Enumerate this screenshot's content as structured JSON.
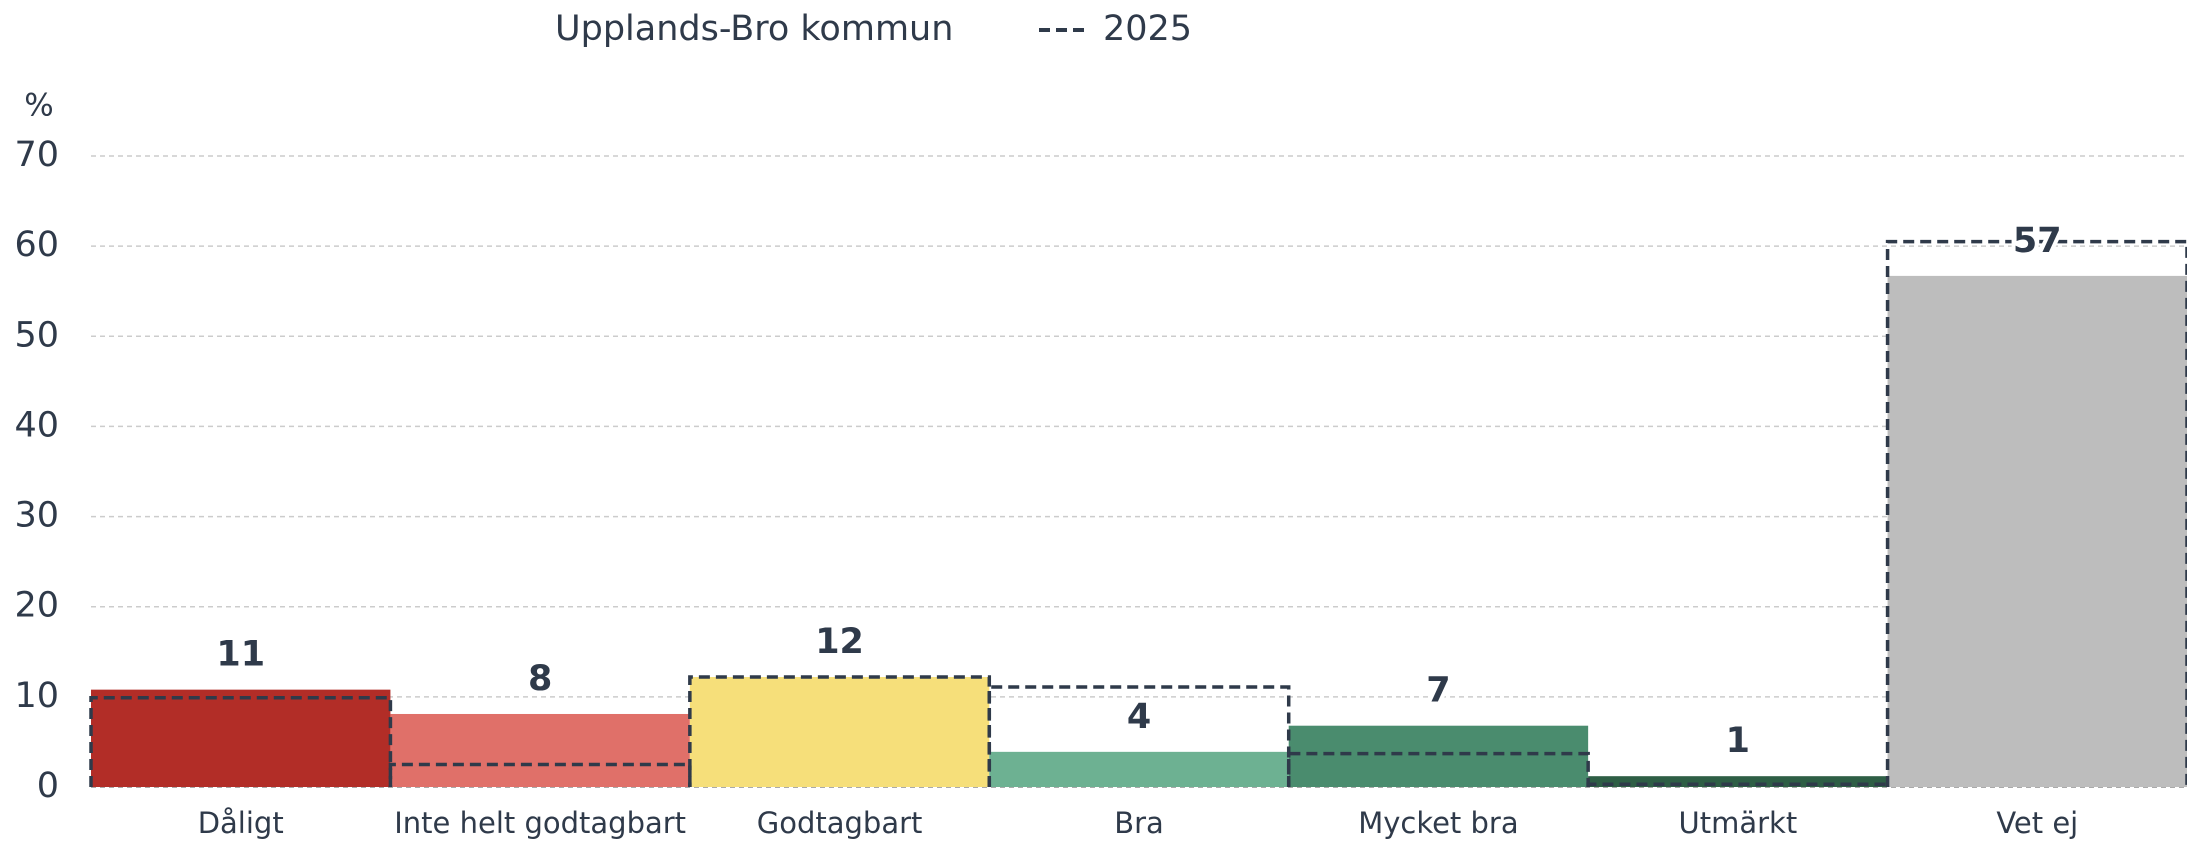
{
  "chart_data": {
    "type": "bar",
    "y_axis_label": "%",
    "categories": [
      "Dåligt",
      "Inte helt godtagbart",
      "Godtagbart",
      "Bra",
      "Mycket bra",
      "Utmärkt",
      "Vet ej"
    ],
    "series": [
      {
        "name": "Upplands-Bro kommun",
        "colors": [
          "#b22d27",
          "#e07069",
          "#f6df7a",
          "#6db192",
          "#4a8c6e",
          "#2e5e45",
          "#bdbdbd"
        ],
        "values": [
          10.8,
          8.1,
          12.2,
          3.9,
          6.8,
          1.2,
          56.7
        ],
        "value_labels": [
          "11",
          "8",
          "12",
          "4",
          "7",
          "1",
          "57"
        ]
      },
      {
        "name": "2025",
        "color": "#2f3a4a",
        "style": "dashed",
        "values": [
          9.9,
          2.5,
          12.2,
          11.1,
          3.7,
          0.3,
          60.5
        ]
      }
    ],
    "ylim": [
      0,
      70
    ],
    "yticks": [
      0,
      10,
      20,
      30,
      40,
      50,
      60,
      70
    ],
    "grid": true
  }
}
